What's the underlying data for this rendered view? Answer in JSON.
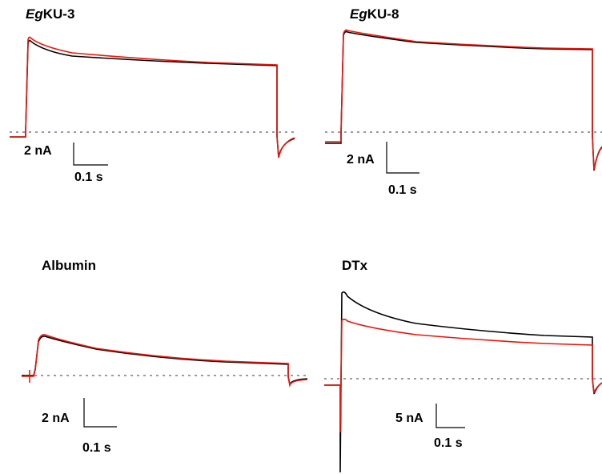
{
  "panels": [
    {
      "id": "egku3",
      "title_italic": "Eg",
      "title_rest": "KU-3",
      "scale": {
        "current": "2 nA",
        "time": "0.1 s"
      },
      "series_colors": {
        "control": "#000000",
        "toxin": "#e8160c"
      },
      "baseline_color": "#9a98ad"
    },
    {
      "id": "egku8",
      "title_italic": "Eg",
      "title_rest": "KU-8",
      "scale": {
        "current": "2 nA",
        "time": "0.1 s"
      },
      "series_colors": {
        "control": "#000000",
        "toxin": "#e8160c"
      },
      "baseline_color": "#9a98ad"
    },
    {
      "id": "albumin",
      "title_italic": "",
      "title_rest": "Albumin",
      "scale": {
        "current": "2 nA",
        "time": "0.1 s"
      },
      "series_colors": {
        "control": "#000000",
        "toxin": "#e8160c"
      },
      "baseline_color": "#9a98ad"
    },
    {
      "id": "dtx",
      "title_italic": "",
      "title_rest": "DTx",
      "scale": {
        "current": "5 nA",
        "time": "0.1 s"
      },
      "series_colors": {
        "control": "#000000",
        "toxin": "#e8160c"
      },
      "baseline_color": "#9a98ad"
    }
  ]
}
